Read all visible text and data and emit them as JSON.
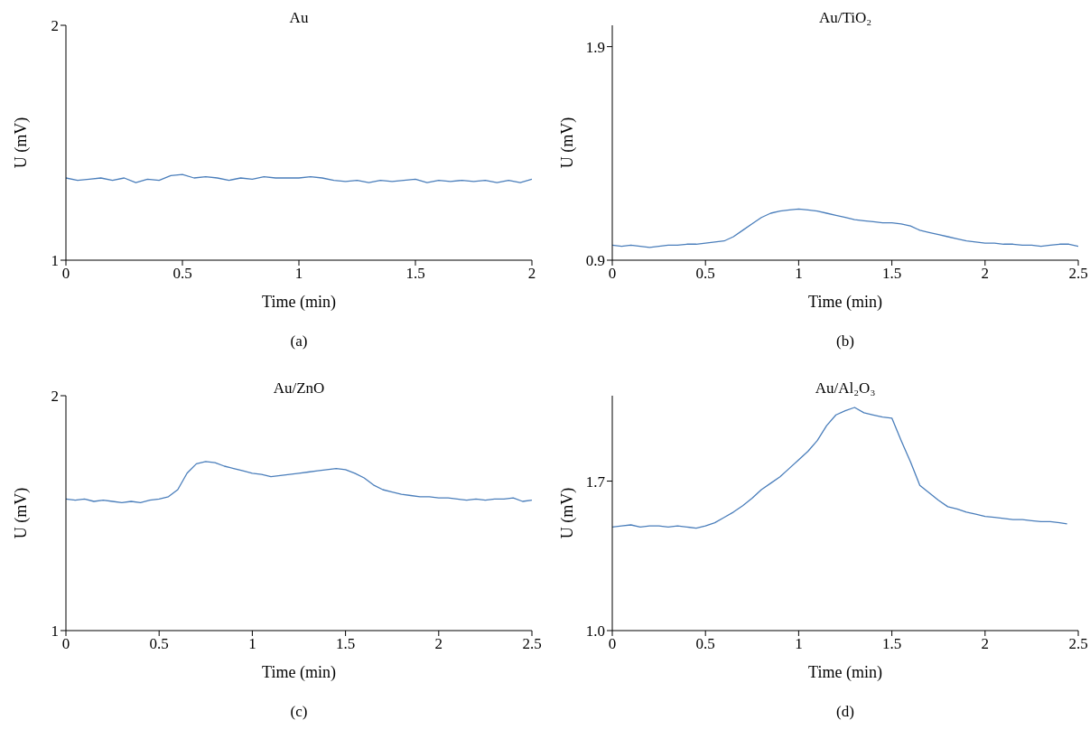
{
  "chart_data": [
    {
      "type": "line",
      "title": "Au",
      "xlabel": "Time (min)",
      "ylabel": "U (mV)",
      "annotations": [
        "(a)"
      ],
      "xlim": [
        0,
        2
      ],
      "xticks": [
        0,
        0.5,
        1,
        1.5,
        2
      ],
      "ylim": [
        1,
        2
      ],
      "yticks": [
        1,
        2
      ],
      "x": [
        0,
        0.05,
        0.1,
        0.15,
        0.2,
        0.25,
        0.3,
        0.35,
        0.4,
        0.45,
        0.5,
        0.55,
        0.6,
        0.65,
        0.7,
        0.75,
        0.8,
        0.85,
        0.9,
        0.95,
        1,
        1.05,
        1.1,
        1.15,
        1.2,
        1.25,
        1.3,
        1.35,
        1.4,
        1.45,
        1.5,
        1.55,
        1.6,
        1.65,
        1.7,
        1.75,
        1.8,
        1.85,
        1.9,
        1.95,
        2
      ],
      "series": [
        {
          "color": "#4a7ebb",
          "values": [
            1.35,
            1.34,
            1.345,
            1.35,
            1.34,
            1.35,
            1.33,
            1.345,
            1.34,
            1.36,
            1.365,
            1.35,
            1.355,
            1.35,
            1.34,
            1.35,
            1.345,
            1.355,
            1.35,
            1.35,
            1.35,
            1.355,
            1.35,
            1.34,
            1.335,
            1.34,
            1.33,
            1.34,
            1.335,
            1.34,
            1.345,
            1.33,
            1.34,
            1.335,
            1.34,
            1.335,
            1.34,
            1.33,
            1.34,
            1.33,
            1.345
          ]
        }
      ]
    },
    {
      "type": "line",
      "title": "Au/TiO₂",
      "xlabel": "Time (min)",
      "ylabel": "U (mV)",
      "annotations": [
        "(b)"
      ],
      "xlim": [
        0,
        2.5
      ],
      "xticks": [
        0,
        0.5,
        1,
        1.5,
        2,
        2.5
      ],
      "ylim": [
        0.9,
        2.0
      ],
      "yticks": [
        0.9,
        1.9
      ],
      "x": [
        0,
        0.05,
        0.1,
        0.15,
        0.2,
        0.25,
        0.3,
        0.35,
        0.4,
        0.45,
        0.5,
        0.55,
        0.6,
        0.65,
        0.7,
        0.75,
        0.8,
        0.85,
        0.9,
        0.95,
        1,
        1.05,
        1.1,
        1.15,
        1.2,
        1.25,
        1.3,
        1.35,
        1.4,
        1.45,
        1.5,
        1.55,
        1.6,
        1.65,
        1.7,
        1.75,
        1.8,
        1.85,
        1.9,
        1.95,
        2,
        2.05,
        2.1,
        2.15,
        2.2,
        2.25,
        2.3,
        2.35,
        2.4,
        2.45,
        2.5
      ],
      "series": [
        {
          "color": "#4a7ebb",
          "values": [
            0.97,
            0.965,
            0.97,
            0.965,
            0.96,
            0.965,
            0.97,
            0.97,
            0.975,
            0.975,
            0.98,
            0.985,
            0.99,
            1.01,
            1.04,
            1.07,
            1.1,
            1.12,
            1.13,
            1.135,
            1.14,
            1.135,
            1.13,
            1.12,
            1.11,
            1.1,
            1.09,
            1.085,
            1.08,
            1.075,
            1.075,
            1.07,
            1.06,
            1.04,
            1.03,
            1.02,
            1.01,
            1.0,
            0.99,
            0.985,
            0.98,
            0.98,
            0.975,
            0.975,
            0.97,
            0.97,
            0.965,
            0.97,
            0.975,
            0.975,
            0.965
          ]
        }
      ]
    },
    {
      "type": "line",
      "title": "Au/ZnO",
      "xlabel": "Time (min)",
      "ylabel": "U (mV)",
      "annotations": [
        "(c)"
      ],
      "xlim": [
        0,
        2.5
      ],
      "xticks": [
        0,
        0.5,
        1,
        1.5,
        2,
        2.5
      ],
      "ylim": [
        1,
        2
      ],
      "yticks": [
        1,
        2
      ],
      "x": [
        0,
        0.05,
        0.1,
        0.15,
        0.2,
        0.25,
        0.3,
        0.35,
        0.4,
        0.45,
        0.5,
        0.55,
        0.6,
        0.65,
        0.7,
        0.75,
        0.8,
        0.85,
        0.9,
        0.95,
        1,
        1.05,
        1.1,
        1.15,
        1.2,
        1.25,
        1.3,
        1.35,
        1.4,
        1.45,
        1.5,
        1.55,
        1.6,
        1.65,
        1.7,
        1.75,
        1.8,
        1.85,
        1.9,
        1.95,
        2,
        2.05,
        2.1,
        2.15,
        2.2,
        2.25,
        2.3,
        2.35,
        2.4,
        2.45,
        2.5
      ],
      "series": [
        {
          "color": "#4a7ebb",
          "values": [
            1.56,
            1.555,
            1.56,
            1.55,
            1.555,
            1.55,
            1.545,
            1.55,
            1.545,
            1.555,
            1.56,
            1.57,
            1.6,
            1.67,
            1.71,
            1.72,
            1.715,
            1.7,
            1.69,
            1.68,
            1.67,
            1.665,
            1.655,
            1.66,
            1.665,
            1.67,
            1.675,
            1.68,
            1.685,
            1.69,
            1.685,
            1.67,
            1.65,
            1.62,
            1.6,
            1.59,
            1.58,
            1.575,
            1.57,
            1.57,
            1.565,
            1.565,
            1.56,
            1.555,
            1.56,
            1.555,
            1.56,
            1.56,
            1.565,
            1.55,
            1.555
          ]
        }
      ]
    },
    {
      "type": "line",
      "title": "Au/Al₂O₃",
      "xlabel": "Time (min)",
      "ylabel": "U (mV)",
      "annotations": [
        "(d)"
      ],
      "xlim": [
        0,
        2.5
      ],
      "xticks": [
        0,
        0.5,
        1,
        1.5,
        2,
        2.5
      ],
      "ylim": [
        1.0,
        2.1
      ],
      "yticks": [
        {
          "value": 1.0,
          "label": "1.0"
        },
        1.7
      ],
      "x": [
        0,
        0.05,
        0.1,
        0.15,
        0.2,
        0.25,
        0.3,
        0.35,
        0.4,
        0.45,
        0.5,
        0.55,
        0.6,
        0.65,
        0.7,
        0.75,
        0.8,
        0.85,
        0.9,
        0.95,
        1,
        1.05,
        1.1,
        1.15,
        1.2,
        1.25,
        1.3,
        1.35,
        1.4,
        1.45,
        1.5,
        1.55,
        1.6,
        1.65,
        1.7,
        1.75,
        1.8,
        1.85,
        1.9,
        1.95,
        2,
        2.05,
        2.1,
        2.15,
        2.2,
        2.25,
        2.3,
        2.35,
        2.4,
        2.44
      ],
      "series": [
        {
          "color": "#4a7ebb",
          "values": [
            1.485,
            1.49,
            1.495,
            1.485,
            1.49,
            1.49,
            1.485,
            1.49,
            1.485,
            1.48,
            1.49,
            1.505,
            1.53,
            1.555,
            1.585,
            1.62,
            1.66,
            1.69,
            1.72,
            1.76,
            1.8,
            1.84,
            1.89,
            1.96,
            2.01,
            2.03,
            2.045,
            2.02,
            2.01,
            2.0,
            1.995,
            1.89,
            1.79,
            1.68,
            1.645,
            1.61,
            1.58,
            1.57,
            1.555,
            1.545,
            1.535,
            1.53,
            1.525,
            1.52,
            1.52,
            1.515,
            1.51,
            1.51,
            1.505,
            1.5
          ]
        }
      ]
    }
  ]
}
